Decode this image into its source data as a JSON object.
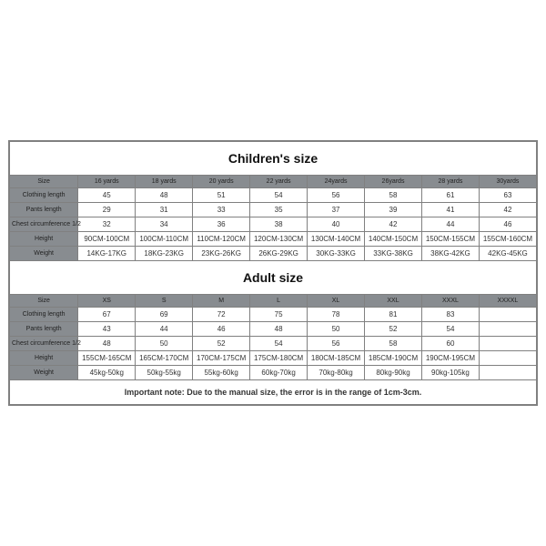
{
  "colors": {
    "border": "#808080",
    "header_bg": "#888c90",
    "text": "#333333",
    "title_text": "#111111",
    "background": "#ffffff"
  },
  "children": {
    "title": "Children's size",
    "headers": [
      "Size",
      "16 yards",
      "18 yards",
      "20 yards",
      "22 yards",
      "24yards",
      "26yards",
      "28 yards",
      "30yards"
    ],
    "rows": [
      {
        "label": "Clothing length",
        "values": [
          "45",
          "48",
          "51",
          "54",
          "56",
          "58",
          "61",
          "63"
        ]
      },
      {
        "label": "Pants length",
        "values": [
          "29",
          "31",
          "33",
          "35",
          "37",
          "39",
          "41",
          "42"
        ]
      },
      {
        "label": "Chest circumference 1/2",
        "values": [
          "32",
          "34",
          "36",
          "38",
          "40",
          "42",
          "44",
          "46"
        ]
      },
      {
        "label": "Height",
        "values": [
          "90CM-100CM",
          "100CM-110CM",
          "110CM-120CM",
          "120CM-130CM",
          "130CM-140CM",
          "140CM-150CM",
          "150CM-155CM",
          "155CM-160CM"
        ]
      },
      {
        "label": "Weight",
        "values": [
          "14KG-17KG",
          "18KG-23KG",
          "23KG-26KG",
          "26KG-29KG",
          "30KG-33KG",
          "33KG-38KG",
          "38KG-42KG",
          "42KG-45KG"
        ]
      }
    ]
  },
  "adult": {
    "title": "Adult size",
    "headers": [
      "Size",
      "XS",
      "S",
      "M",
      "L",
      "XL",
      "XXL",
      "XXXL",
      "XXXXL"
    ],
    "rows": [
      {
        "label": "Clothing length",
        "values": [
          "67",
          "69",
          "72",
          "75",
          "78",
          "81",
          "83",
          ""
        ]
      },
      {
        "label": "Pants length",
        "values": [
          "43",
          "44",
          "46",
          "48",
          "50",
          "52",
          "54",
          ""
        ]
      },
      {
        "label": "Chest circumference 1/2",
        "values": [
          "48",
          "50",
          "52",
          "54",
          "56",
          "58",
          "60",
          ""
        ]
      },
      {
        "label": "Height",
        "values": [
          "155CM-165CM",
          "165CM-170CM",
          "170CM-175CM",
          "175CM-180CM",
          "180CM-185CM",
          "185CM-190CM",
          "190CM-195CM",
          ""
        ]
      },
      {
        "label": "Weight",
        "values": [
          "45kg-50kg",
          "50kg-55kg",
          "55kg-60kg",
          "60kg-70kg",
          "70kg-80kg",
          "80kg-90kg",
          "90kg-105kg",
          ""
        ]
      }
    ]
  },
  "note": "Important note: Due to the manual size, the error is in the range of 1cm-3cm."
}
